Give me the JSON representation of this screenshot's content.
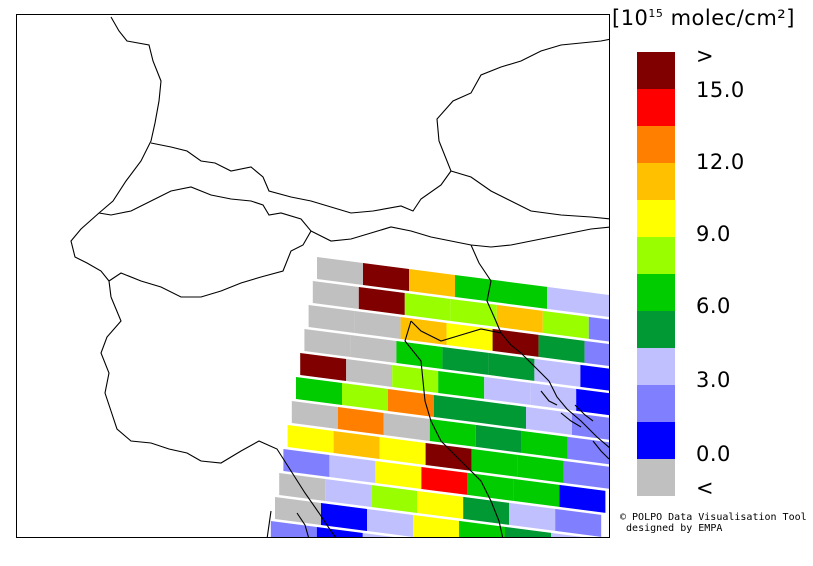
{
  "legend": {
    "unit_prefix": "[10",
    "unit_exponent": "15",
    "unit_suffix": " molec/cm²]",
    "labels": [
      ">",
      "15.0",
      "12.0",
      "9.0",
      "6.0",
      "3.0",
      "0.0",
      "<"
    ],
    "colors": [
      "#800000",
      "#ff0000",
      "#ff8000",
      "#ffc000",
      "#ffff00",
      "#99ff00",
      "#00cc00",
      "#009933",
      "#c0c0ff",
      "#8080ff",
      "#0000ff",
      "#c0c0c0"
    ]
  },
  "credit": {
    "line1": "© POLPO Data Visualisation Tool",
    "line2": "designed by EMPA"
  },
  "swath_rows": [
    [
      "#c0c0c0",
      "#800000",
      "#ffc000",
      "#00cc00",
      "#00cc00",
      "#c0c0ff",
      "#c0c0ff"
    ],
    [
      "#c0c0c0",
      "#800000",
      "#99ff00",
      "#99ff00",
      "#ffc000",
      "#99ff00",
      "#8080ff"
    ],
    [
      "#c0c0c0",
      "#c0c0c0",
      "#ffc000",
      "#ffff00",
      "#800000",
      "#009933",
      "#8080ff"
    ],
    [
      "#c0c0c0",
      "#c0c0c0",
      "#00cc00",
      "#009933",
      "#009933",
      "#c0c0ff",
      "#0000ff"
    ],
    [
      "#800000",
      "#c0c0c0",
      "#99ff00",
      "#00cc00",
      "#c0c0ff",
      "#c0c0ff",
      "#0000ff"
    ],
    [
      "#00cc00",
      "#99ff00",
      "#ff8000",
      "#009933",
      "#009933",
      "#c0c0ff",
      "#8080ff"
    ],
    [
      "#c0c0c0",
      "#ff8000",
      "#c0c0c0",
      "#00cc00",
      "#009933",
      "#00cc00",
      "#8080ff"
    ],
    [
      "#ffff00",
      "#ffc000",
      "#ffff00",
      "#800000",
      "#00cc00",
      "#00cc00",
      "#8080ff"
    ],
    [
      "#8080ff",
      "#c0c0ff",
      "#ffff00",
      "#ff0000",
      "#00cc00",
      "#00cc00",
      "#0000ff"
    ],
    [
      "#c0c0c0",
      "#c0c0ff",
      "#99ff00",
      "#ffff00",
      "#009933",
      "#c0c0ff",
      "#8080ff"
    ],
    [
      "#c0c0c0",
      "#0000ff",
      "#c0c0ff",
      "#ffff00",
      "#00cc00",
      "#009933",
      "#c0c0ff"
    ],
    [
      "#8080ff",
      "#0000ff",
      "#c0c0ff",
      "#ffff00",
      "#ffc000",
      "#c0c0ff",
      "#c0c0ff"
    ]
  ]
}
